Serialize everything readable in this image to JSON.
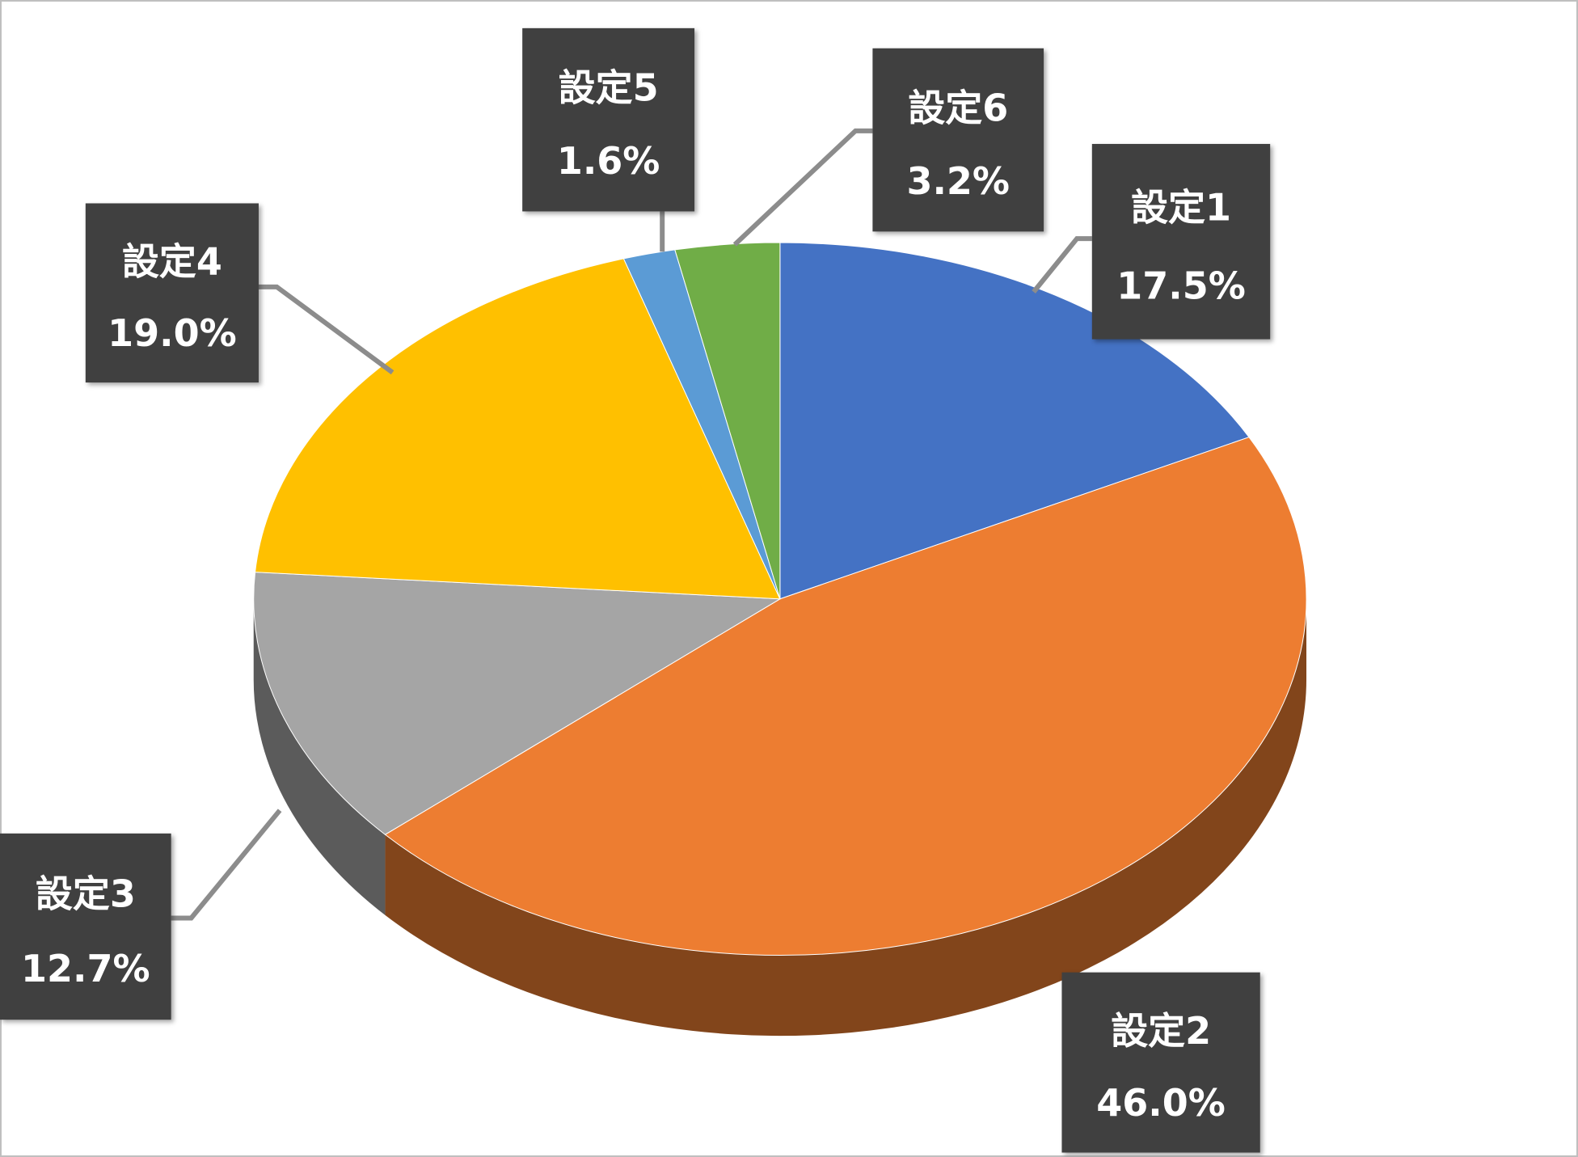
{
  "chart_data": {
    "type": "pie",
    "categories": [
      "設定1",
      "設定2",
      "設定3",
      "設定4",
      "設定5",
      "設定6"
    ],
    "values": [
      17.5,
      46.0,
      12.7,
      19.0,
      1.6,
      3.2
    ],
    "value_labels": [
      "17.5%",
      "46.0%",
      "12.7%",
      "19.0%",
      "1.6%",
      "3.2%"
    ],
    "colors": [
      "#4472c4",
      "#ed7d31",
      "#a5a5a5",
      "#ffc000",
      "#5b9bd5",
      "#70ad47"
    ]
  }
}
